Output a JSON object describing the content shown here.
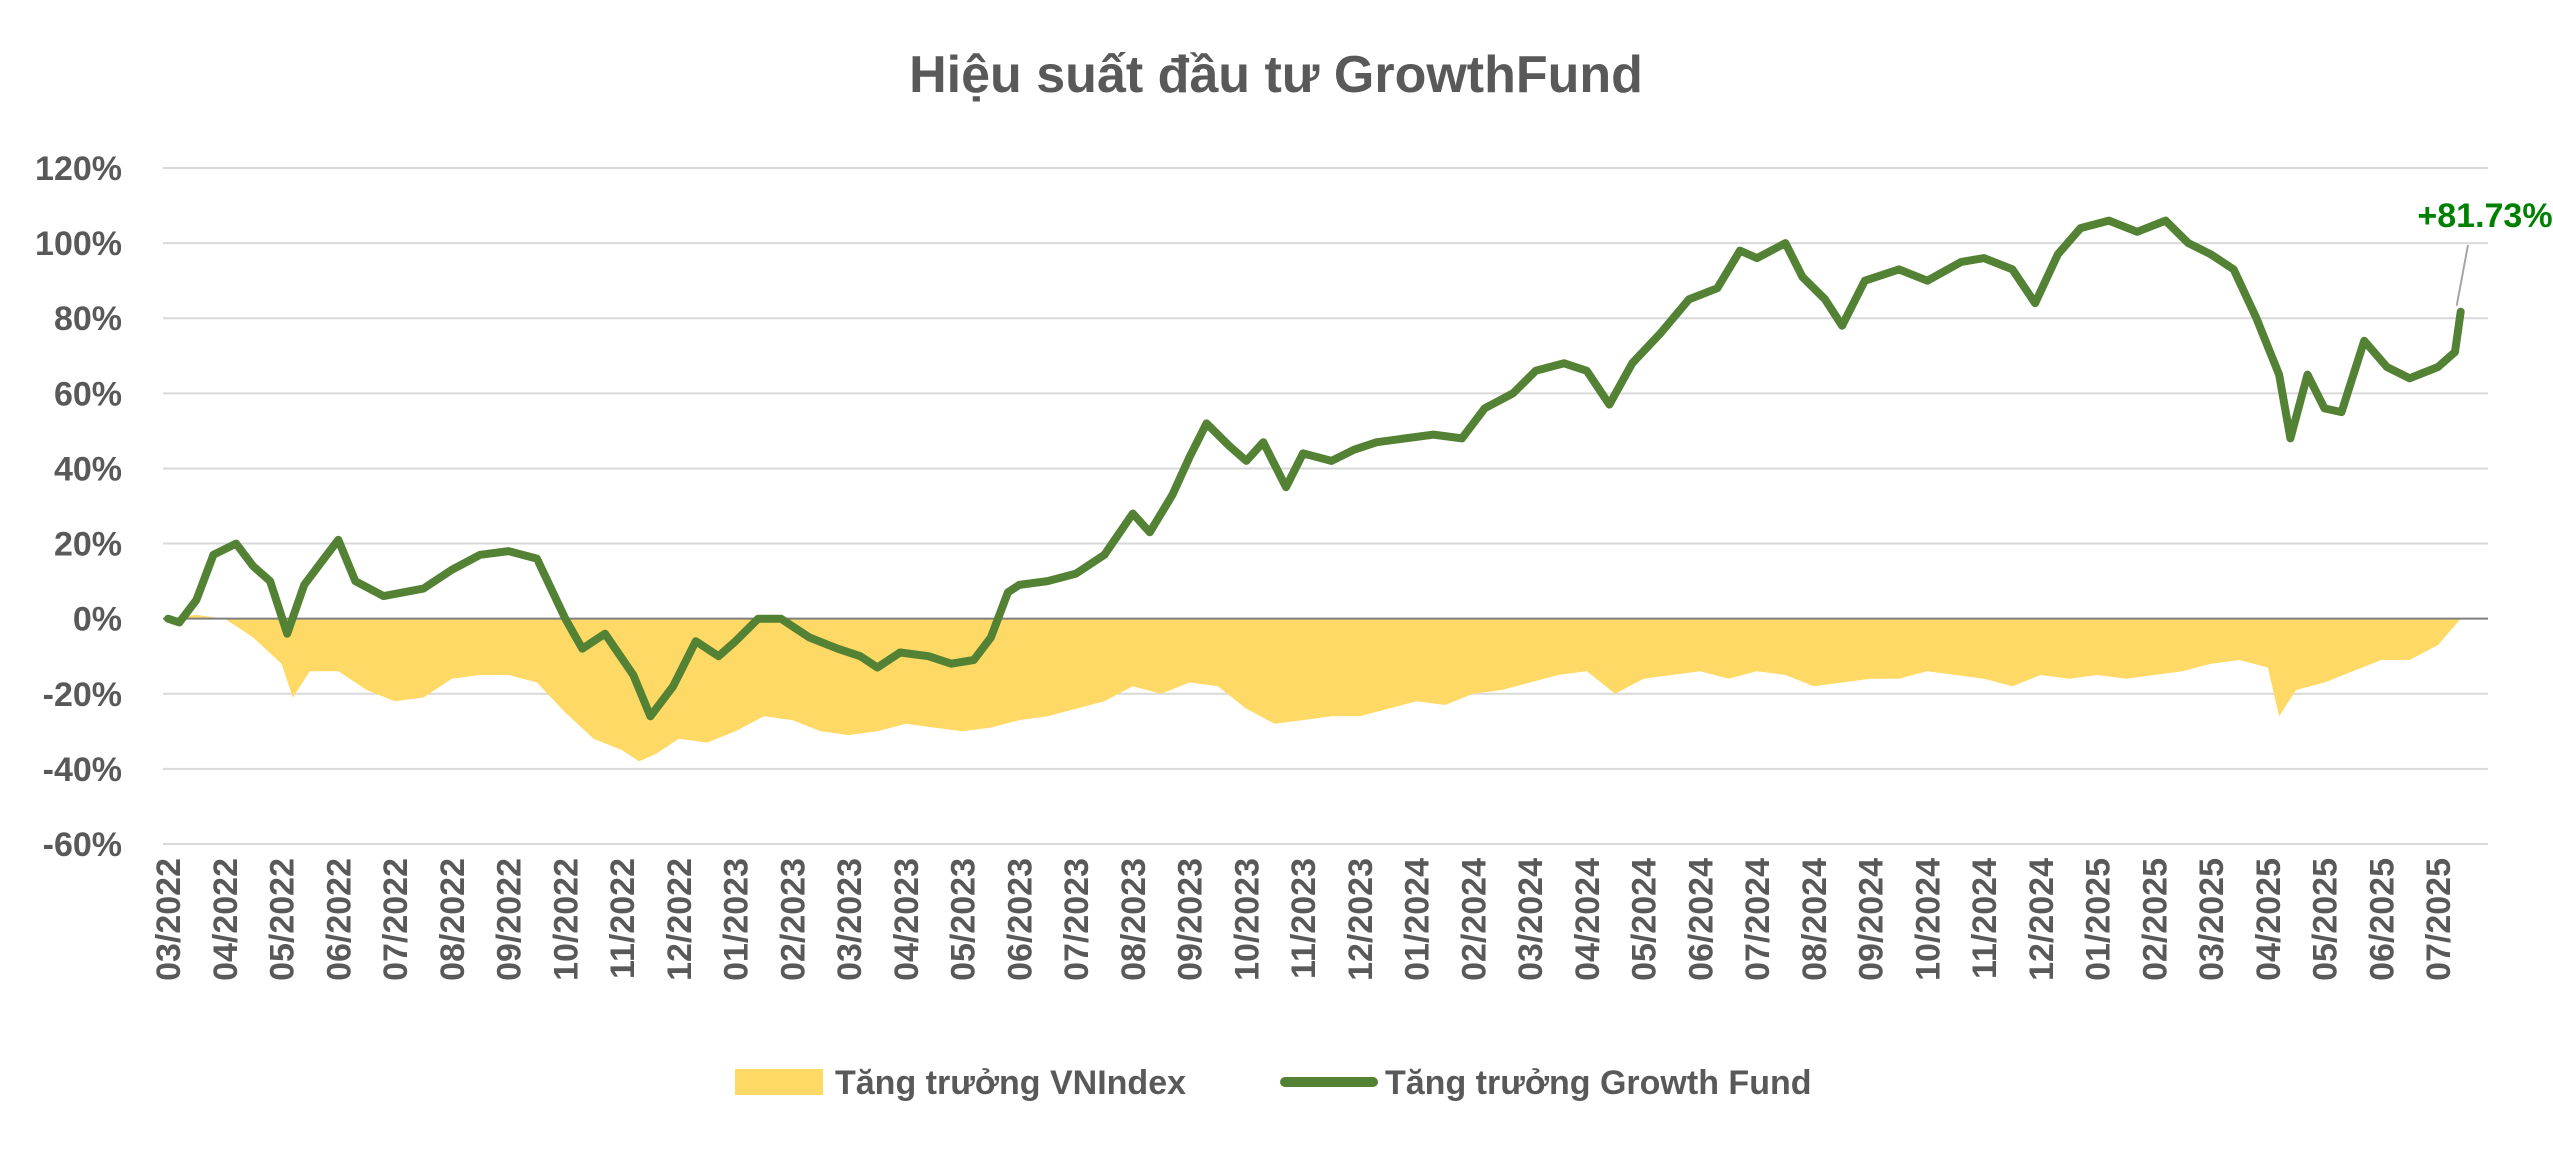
{
  "chart_data": {
    "type": "line",
    "title": "Hiệu suất đầu tư GrowthFund",
    "xlabel": "",
    "ylabel": "",
    "ylim": [
      -0.6,
      1.2
    ],
    "y_ticks": [
      {
        "value": 1.2,
        "label": "120%"
      },
      {
        "value": 1.0,
        "label": "100%"
      },
      {
        "value": 0.8,
        "label": "80%"
      },
      {
        "value": 0.6,
        "label": "60%"
      },
      {
        "value": 0.4,
        "label": "40%"
      },
      {
        "value": 0.2,
        "label": "20%"
      },
      {
        "value": 0.0,
        "label": "0%"
      },
      {
        "value": -0.2,
        "label": "-20%"
      },
      {
        "value": -0.4,
        "label": "-40%"
      },
      {
        "value": -0.6,
        "label": "-60%"
      }
    ],
    "x_ticks": [
      "03/2022",
      "04/2022",
      "05/2022",
      "06/2022",
      "07/2022",
      "08/2022",
      "09/2022",
      "10/2022",
      "11/2022",
      "12/2022",
      "01/2023",
      "02/2023",
      "03/2023",
      "04/2023",
      "05/2023",
      "06/2023",
      "07/2023",
      "08/2023",
      "09/2023",
      "10/2023",
      "11/2023",
      "12/2023",
      "01/2024",
      "02/2024",
      "03/2024",
      "04/2024",
      "05/2024",
      "06/2024",
      "07/2024",
      "08/2024",
      "09/2024",
      "10/2024",
      "11/2024",
      "12/2024",
      "01/2025",
      "02/2025",
      "03/2025",
      "04/2025",
      "05/2025",
      "06/2025",
      "07/2025"
    ],
    "legend_position": "bottom",
    "grid": true,
    "series": [
      {
        "name": "Tăng trưởng VNIndex",
        "type": "area",
        "color": "#FFD966",
        "x": [
          "03/2022",
          "03/2022",
          "04/2022",
          "04/2022",
          "05/2022",
          "05/2022",
          "05/2022",
          "06/2022",
          "06/2022",
          "07/2022",
          "07/2022",
          "08/2022",
          "08/2022",
          "09/2022",
          "09/2022",
          "10/2022",
          "10/2022",
          "11/2022",
          "11/2022",
          "11/2022",
          "12/2022",
          "12/2022",
          "01/2023",
          "01/2023",
          "02/2023",
          "02/2023",
          "03/2023",
          "03/2023",
          "04/2023",
          "04/2023",
          "05/2023",
          "05/2023",
          "06/2023",
          "06/2023",
          "07/2023",
          "07/2023",
          "08/2023",
          "08/2023",
          "09/2023",
          "09/2023",
          "10/2023",
          "10/2023",
          "11/2023",
          "11/2023",
          "12/2023",
          "12/2023",
          "01/2024",
          "01/2024",
          "02/2024",
          "02/2024",
          "03/2024",
          "03/2024",
          "04/2024",
          "04/2024",
          "05/2024",
          "05/2024",
          "06/2024",
          "06/2024",
          "07/2024",
          "07/2024",
          "08/2024",
          "08/2024",
          "09/2024",
          "09/2024",
          "10/2024",
          "10/2024",
          "11/2024",
          "11/2024",
          "12/2024",
          "12/2024",
          "01/2025",
          "01/2025",
          "02/2025",
          "02/2025",
          "03/2025",
          "03/2025",
          "04/2025",
          "04/2025",
          "04/2025",
          "05/2025",
          "05/2025",
          "06/2025",
          "06/2025",
          "07/2025",
          "07/2025"
        ],
        "x_pos": [
          0,
          0.5,
          1.0,
          1.5,
          2.0,
          2.2,
          2.5,
          3.0,
          3.5,
          4.0,
          4.5,
          5.0,
          5.5,
          6.0,
          6.5,
          7.0,
          7.5,
          8.0,
          8.3,
          8.6,
          9.0,
          9.5,
          10.0,
          10.5,
          11.0,
          11.5,
          12.0,
          12.5,
          13.0,
          13.5,
          14.0,
          14.5,
          15.0,
          15.5,
          16.0,
          16.5,
          17.0,
          17.5,
          18.0,
          18.5,
          19.0,
          19.5,
          20.0,
          20.5,
          21.0,
          21.5,
          22.0,
          22.5,
          23.0,
          23.5,
          24.0,
          24.5,
          25.0,
          25.5,
          26.0,
          26.5,
          27.0,
          27.5,
          28.0,
          28.5,
          29.0,
          29.5,
          30.0,
          30.5,
          31.0,
          31.5,
          32.0,
          32.5,
          33.0,
          33.5,
          34.0,
          34.5,
          35.0,
          35.5,
          36.0,
          36.5,
          37.0,
          37.2,
          37.5,
          38.0,
          38.5,
          39.0,
          39.5,
          40.0,
          40.4
        ],
        "values": [
          0.0,
          0.01,
          0.0,
          -0.05,
          -0.12,
          -0.21,
          -0.14,
          -0.14,
          -0.19,
          -0.22,
          -0.21,
          -0.16,
          -0.15,
          -0.15,
          -0.17,
          -0.25,
          -0.32,
          -0.35,
          -0.38,
          -0.36,
          -0.32,
          -0.33,
          -0.3,
          -0.26,
          -0.27,
          -0.3,
          -0.31,
          -0.3,
          -0.28,
          -0.29,
          -0.3,
          -0.29,
          -0.27,
          -0.26,
          -0.24,
          -0.22,
          -0.18,
          -0.2,
          -0.17,
          -0.18,
          -0.24,
          -0.28,
          -0.27,
          -0.26,
          -0.26,
          -0.24,
          -0.22,
          -0.23,
          -0.2,
          -0.19,
          -0.17,
          -0.15,
          -0.14,
          -0.2,
          -0.16,
          -0.15,
          -0.14,
          -0.16,
          -0.14,
          -0.15,
          -0.18,
          -0.17,
          -0.16,
          -0.16,
          -0.14,
          -0.15,
          -0.16,
          -0.18,
          -0.15,
          -0.16,
          -0.15,
          -0.16,
          -0.15,
          -0.14,
          -0.12,
          -0.11,
          -0.13,
          -0.26,
          -0.19,
          -0.17,
          -0.14,
          -0.11,
          -0.11,
          -0.07,
          0.0
        ]
      },
      {
        "name": "Tăng trưởng Growth Fund",
        "type": "line",
        "color": "#548235",
        "x": [
          "03/2022",
          "03/2022",
          "04/2022",
          "04/2022",
          "04/2022",
          "05/2022",
          "05/2022",
          "05/2022",
          "05/2022",
          "06/2022",
          "06/2022",
          "06/2022",
          "07/2022",
          "07/2022",
          "08/2022",
          "08/2022",
          "09/2022",
          "09/2022",
          "10/2022",
          "10/2022",
          "10/2022",
          "11/2022",
          "11/2022",
          "11/2022",
          "12/2022",
          "12/2022",
          "01/2023",
          "01/2023",
          "01/2023",
          "02/2023",
          "02/2023",
          "03/2023",
          "03/2023",
          "03/2023",
          "04/2023",
          "04/2023",
          "05/2023",
          "05/2023",
          "05/2023",
          "06/2023",
          "06/2023",
          "07/2023",
          "07/2023",
          "08/2023",
          "08/2023",
          "08/2023",
          "09/2023",
          "09/2023",
          "09/2023",
          "10/2023",
          "10/2023",
          "10/2023",
          "11/2023",
          "11/2023",
          "11/2023",
          "12/2023",
          "12/2023",
          "01/2024",
          "01/2024",
          "02/2024",
          "02/2024",
          "03/2024",
          "03/2024",
          "04/2024",
          "04/2024",
          "04/2024",
          "05/2024",
          "05/2024",
          "06/2024",
          "06/2024",
          "07/2024",
          "07/2024",
          "07/2024",
          "08/2024",
          "08/2024",
          "08/2024",
          "09/2024",
          "09/2024",
          "10/2024",
          "10/2024",
          "11/2024",
          "11/2024",
          "11/2024",
          "12/2024",
          "12/2024",
          "01/2025",
          "01/2025",
          "02/2025",
          "02/2025",
          "03/2025",
          "03/2025",
          "03/2025",
          "04/2025",
          "04/2025",
          "04/2025",
          "05/2025",
          "05/2025",
          "05/2025",
          "06/2025",
          "06/2025",
          "07/2025",
          "07/2025"
        ],
        "x_pos": [
          0,
          0.2,
          0.5,
          0.8,
          1.2,
          1.5,
          1.8,
          2.1,
          2.4,
          2.7,
          3.0,
          3.3,
          3.8,
          4.5,
          5.0,
          5.5,
          6.0,
          6.5,
          7.0,
          7.3,
          7.7,
          8.2,
          8.5,
          8.9,
          9.3,
          9.7,
          10.0,
          10.4,
          10.8,
          11.3,
          11.8,
          12.2,
          12.5,
          12.9,
          13.4,
          13.8,
          14.2,
          14.5,
          14.8,
          15.0,
          15.5,
          16.0,
          16.5,
          17.0,
          17.3,
          17.7,
          18.0,
          18.3,
          18.7,
          19.0,
          19.3,
          19.7,
          20.0,
          20.5,
          20.9,
          21.3,
          21.8,
          22.3,
          22.8,
          23.2,
          23.7,
          24.1,
          24.6,
          25.0,
          25.4,
          25.8,
          26.3,
          26.8,
          27.3,
          27.7,
          28.0,
          28.5,
          28.8,
          29.2,
          29.5,
          29.9,
          30.5,
          31.0,
          31.6,
          32.0,
          32.5,
          32.9,
          33.3,
          33.7,
          34.2,
          34.7,
          35.2,
          35.6,
          36.0,
          36.4,
          36.8,
          37.2,
          37.4,
          37.7,
          38.0,
          38.3,
          38.7,
          39.1,
          39.5,
          40.0,
          40.3,
          40.4
        ],
        "values": [
          0.0,
          -0.01,
          0.05,
          0.17,
          0.2,
          0.14,
          0.1,
          -0.04,
          0.09,
          0.15,
          0.21,
          0.1,
          0.06,
          0.08,
          0.13,
          0.17,
          0.18,
          0.16,
          0.0,
          -0.08,
          -0.04,
          -0.15,
          -0.26,
          -0.18,
          -0.06,
          -0.1,
          -0.06,
          0.0,
          0.0,
          -0.05,
          -0.08,
          -0.1,
          -0.13,
          -0.09,
          -0.1,
          -0.12,
          -0.11,
          -0.05,
          0.07,
          0.09,
          0.1,
          0.12,
          0.17,
          0.28,
          0.23,
          0.33,
          0.43,
          0.52,
          0.46,
          0.42,
          0.47,
          0.35,
          0.44,
          0.42,
          0.45,
          0.47,
          0.48,
          0.49,
          0.48,
          0.56,
          0.6,
          0.66,
          0.68,
          0.66,
          0.57,
          0.68,
          0.76,
          0.85,
          0.88,
          0.98,
          0.96,
          1.0,
          0.91,
          0.85,
          0.78,
          0.9,
          0.93,
          0.9,
          0.95,
          0.96,
          0.93,
          0.84,
          0.97,
          1.04,
          1.06,
          1.03,
          1.06,
          1.0,
          0.97,
          0.93,
          0.8,
          0.65,
          0.48,
          0.65,
          0.56,
          0.55,
          0.74,
          0.67,
          0.64,
          0.67,
          0.71,
          0.8173
        ]
      }
    ],
    "end_label": "+81.73%",
    "end_label_color": "#008000"
  }
}
